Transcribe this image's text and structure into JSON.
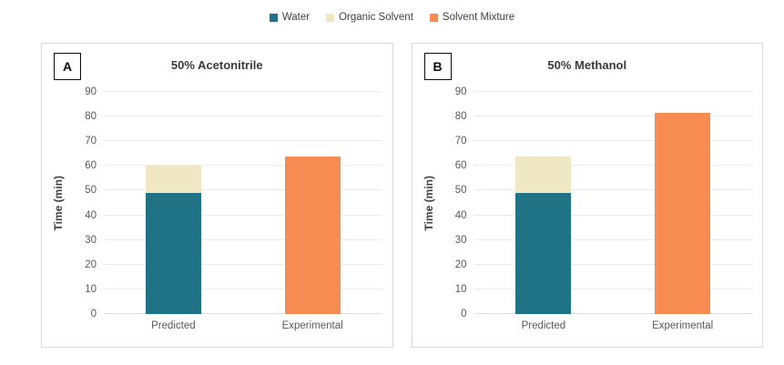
{
  "legend": {
    "items": [
      {
        "label": "Water",
        "color": "#207285"
      },
      {
        "label": "Organic Solvent",
        "color": "#F0E7C4"
      },
      {
        "label": "Solvent Mixture",
        "color": "#F68C51"
      }
    ]
  },
  "chart_data": [
    {
      "type": "bar",
      "stacked": true,
      "panel_label": "A",
      "title": "50% Acetonitrile",
      "categories": [
        "Predicted",
        "Experimental"
      ],
      "series": [
        {
          "name": "Water",
          "color": "#207285",
          "values": [
            49,
            0
          ]
        },
        {
          "name": "Organic Solvent",
          "color": "#F0E7C4",
          "values": [
            11,
            0
          ]
        },
        {
          "name": "Solvent Mixture",
          "color": "#F68C51",
          "values": [
            0,
            64
          ]
        }
      ],
      "xlabel": "",
      "ylabel": "Time (min)",
      "ylim": [
        0,
        90
      ],
      "ytick_step": 10,
      "grid": true,
      "legend_position": "top-center"
    },
    {
      "type": "bar",
      "stacked": true,
      "panel_label": "B",
      "title": "50% Methanol",
      "categories": [
        "Predicted",
        "Experimental"
      ],
      "series": [
        {
          "name": "Water",
          "color": "#207285",
          "values": [
            49,
            0
          ]
        },
        {
          "name": "Organic Solvent",
          "color": "#F0E7C4",
          "values": [
            14.7,
            0
          ]
        },
        {
          "name": "Solvent Mixture",
          "color": "#F68C51",
          "values": [
            0,
            81.5
          ]
        }
      ],
      "xlabel": "",
      "ylabel": "Time (min)",
      "ylim": [
        0,
        90
      ],
      "ytick_step": 10,
      "grid": true,
      "legend_position": "top-center"
    }
  ]
}
